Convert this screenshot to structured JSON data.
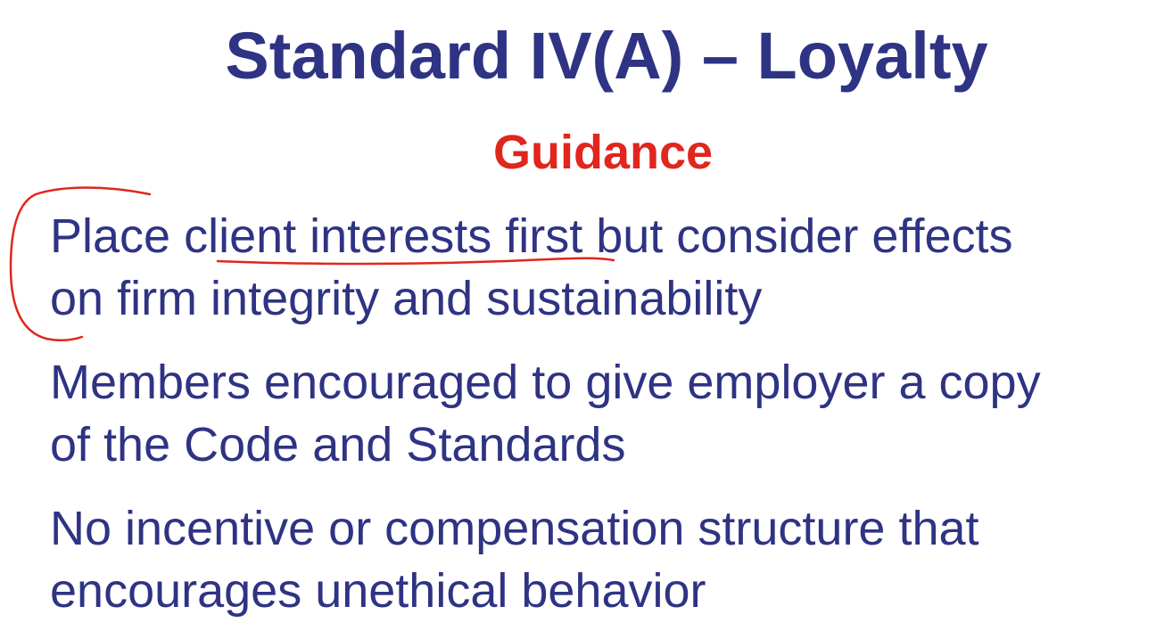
{
  "slide": {
    "title": "Standard IV(A) – Loyalty",
    "subtitle": "Guidance",
    "bullets": [
      {
        "line1": "Place client interests first but consider effects",
        "line2": "on firm integrity and sustainability"
      },
      {
        "line1": "Members encouraged to give employer a copy",
        "line2": "of the Code and Standards"
      },
      {
        "line1": "No incentive or compensation structure that",
        "line2": "encourages unethical behavior"
      }
    ]
  },
  "colors": {
    "title": "#2e3383",
    "subtitle": "#e0261d",
    "body": "#2e3383",
    "annotation": "#e0261d",
    "background": "#ffffff"
  }
}
